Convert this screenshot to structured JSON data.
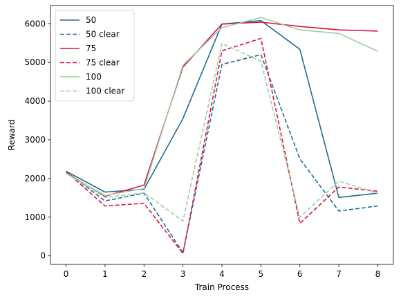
{
  "chart_data": {
    "type": "line",
    "title": "",
    "xlabel": "Train Process",
    "ylabel": "Reward",
    "x": [
      0,
      1,
      2,
      3,
      4,
      5,
      6,
      7,
      8
    ],
    "xlim": [
      -0.4,
      8.4
    ],
    "ylim": [
      -220,
      6470
    ],
    "xticks": [
      0,
      1,
      2,
      3,
      4,
      5,
      6,
      7,
      8
    ],
    "yticks": [
      0,
      1000,
      2000,
      3000,
      4000,
      5000,
      6000
    ],
    "grid": false,
    "legend_position": "top-left",
    "series": [
      {
        "name": "50",
        "color": "#1f6a96",
        "style": "solid",
        "values": [
          2190,
          1650,
          1720,
          3550,
          5990,
          6080,
          5340,
          1510,
          1620
        ]
      },
      {
        "name": "50 clear",
        "color": "#1f6a96",
        "style": "dashed",
        "values": [
          2180,
          1420,
          1620,
          80,
          4950,
          5200,
          2510,
          1160,
          1290
        ]
      },
      {
        "name": "75",
        "color": "#e0113f",
        "style": "solid",
        "values": [
          2150,
          1540,
          1830,
          4880,
          5990,
          6040,
          5930,
          5840,
          5810
        ]
      },
      {
        "name": "75 clear",
        "color": "#e0113f",
        "style": "dashed",
        "values": [
          2180,
          1290,
          1360,
          60,
          5300,
          5620,
          840,
          1780,
          1670
        ]
      },
      {
        "name": "100",
        "color": "#9ecda1",
        "style": "solid",
        "values": [
          2130,
          1560,
          1740,
          4930,
          5900,
          6160,
          5840,
          5750,
          5290
        ]
      },
      {
        "name": "100 clear",
        "color": "#9ecda1",
        "style": "dashed",
        "values": [
          2140,
          1510,
          1630,
          900,
          5490,
          5030,
          1000,
          1930,
          1620
        ]
      }
    ]
  }
}
